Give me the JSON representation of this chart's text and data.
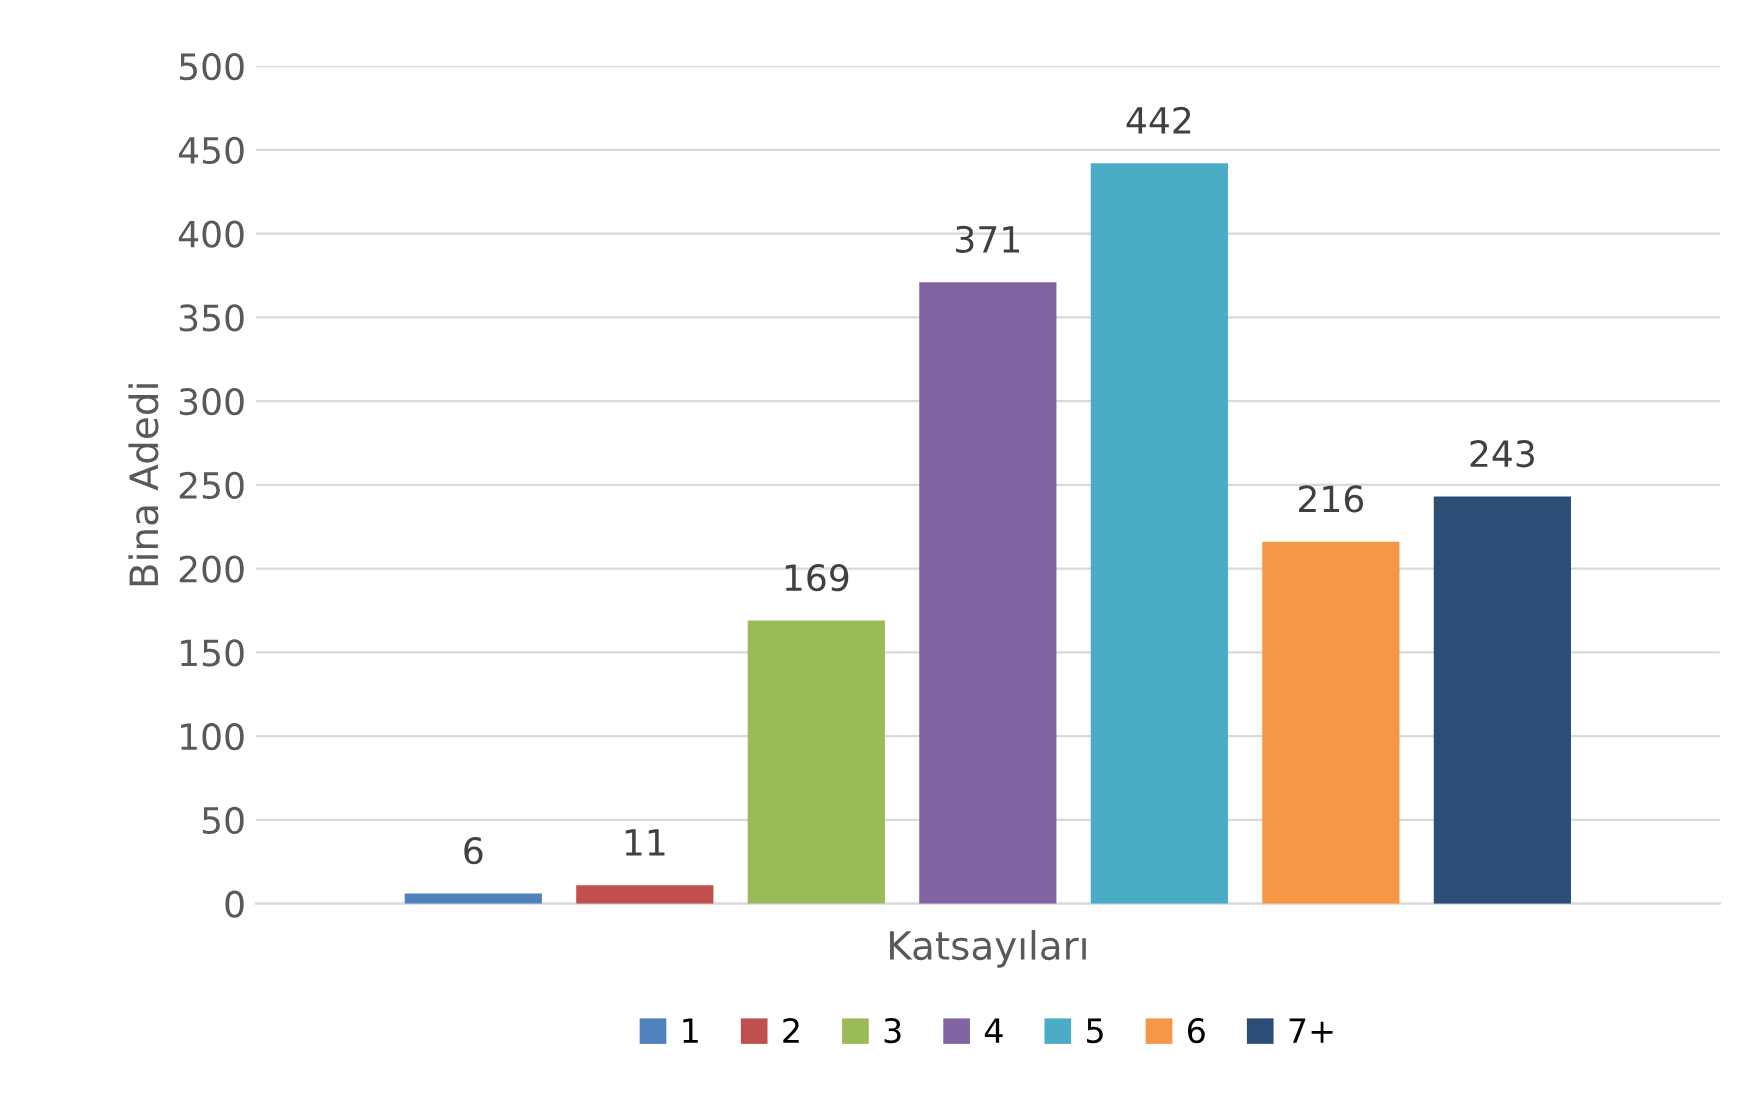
{
  "chart_data": {
    "type": "bar",
    "xlabel": "Katsayıları",
    "ylabel": "Bina Adedi",
    "categories": [
      null
    ],
    "series": [
      {
        "name": "1",
        "color": "#4f81bd",
        "values": [
          6
        ]
      },
      {
        "name": "2",
        "color": "#c0504d",
        "values": [
          11
        ]
      },
      {
        "name": "3",
        "color": "#9bbb59",
        "values": [
          169
        ]
      },
      {
        "name": "4",
        "color": "#8064a2",
        "values": [
          371
        ]
      },
      {
        "name": "5",
        "color": "#4bacc6",
        "values": [
          442
        ]
      },
      {
        "name": "6",
        "color": "#f79646",
        "values": [
          216
        ]
      },
      {
        "name": "7+",
        "color": "#2c4d75",
        "values": [
          243
        ]
      }
    ],
    "ylim": [
      0,
      500
    ],
    "yticks": [
      0,
      50,
      100,
      150,
      200,
      250,
      300,
      350,
      400,
      450,
      500
    ],
    "grid": "y",
    "legend": "bottom",
    "data_labels": true
  }
}
